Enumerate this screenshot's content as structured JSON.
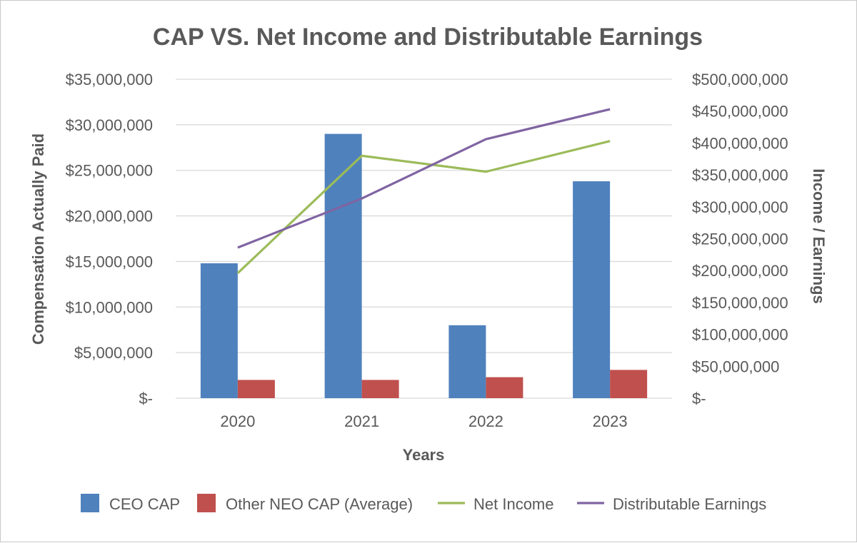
{
  "chart_data": {
    "type": "bar",
    "title": "CAP VS. Net Income and Distributable Earnings",
    "xlabel": "Years",
    "ylabel": "Compensation Actually Paid",
    "y2label": "Income / Earnings",
    "categories": [
      "2020",
      "2021",
      "2022",
      "2023"
    ],
    "ylim": [
      0,
      35000000
    ],
    "y2lim": [
      0,
      500000000
    ],
    "y_ticks": [
      0,
      5000000,
      10000000,
      15000000,
      20000000,
      25000000,
      30000000,
      35000000
    ],
    "y_tick_labels": [
      "$-",
      "$5,000,000",
      "$10,000,000",
      "$15,000,000",
      "$20,000,000",
      "$25,000,000",
      "$30,000,000",
      "$35,000,000"
    ],
    "y2_ticks": [
      0,
      50000000,
      100000000,
      150000000,
      200000000,
      250000000,
      300000000,
      350000000,
      400000000,
      450000000,
      500000000
    ],
    "y2_tick_labels": [
      "$-",
      "$50,000,000",
      "$100,000,000",
      "$150,000,000",
      "$200,000,000",
      "$250,000,000",
      "$300,000,000",
      "$350,000,000",
      "$400,000,000",
      "$450,000,000",
      "$500,000,000"
    ],
    "grid": true,
    "legend_position": "bottom",
    "series": [
      {
        "name": "CEO CAP",
        "kind": "bar",
        "axis": "left",
        "color": "#4f81bd",
        "values": [
          14800000,
          29000000,
          8000000,
          23800000
        ]
      },
      {
        "name": "Other NEO CAP (Average)",
        "kind": "bar",
        "axis": "left",
        "color": "#c0504d",
        "values": [
          2000000,
          2000000,
          2300000,
          3100000
        ]
      },
      {
        "name": "Net Income",
        "kind": "line",
        "axis": "right",
        "color": "#9bbb59",
        "values": [
          196000000,
          380000000,
          355000000,
          403000000
        ]
      },
      {
        "name": "Distributable Earnings",
        "kind": "line",
        "axis": "right",
        "color": "#8064a2",
        "values": [
          236000000,
          313000000,
          406000000,
          453000000
        ]
      }
    ]
  }
}
